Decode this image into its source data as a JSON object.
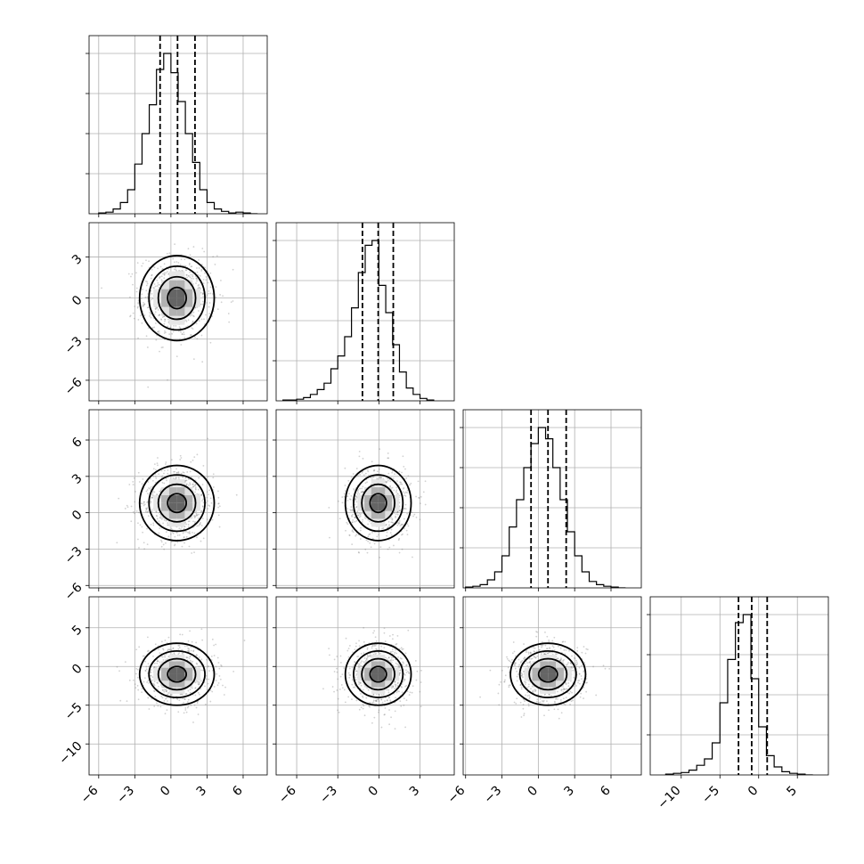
{
  "chart_data": {
    "type": "corner",
    "n_params": 4,
    "grid": true,
    "colors": {
      "frame": "#000000",
      "grid": "#b0b0b0",
      "points": "#7a7a7a",
      "density_max": "#000000"
    },
    "params": [
      {
        "index": 0,
        "range": [
          -6.8,
          8.0
        ],
        "ticks": [
          -6,
          -3,
          0,
          3,
          6
        ],
        "tick_labels": [
          "−6",
          "−3",
          "0",
          "3",
          "6"
        ],
        "quantiles": [
          -0.9,
          0.55,
          2.0
        ],
        "hist": {
          "edges": [
            -6,
            -5.4,
            -4.8,
            -4.2,
            -3.6,
            -3.0,
            -2.4,
            -1.8,
            -1.2,
            -0.6,
            0.0,
            0.6,
            1.2,
            1.8,
            2.4,
            3.0,
            3.6,
            4.2,
            4.8,
            5.4,
            6.0,
            6.6,
            7.2
          ],
          "counts": [
            0.005,
            0.01,
            0.03,
            0.07,
            0.15,
            0.31,
            0.5,
            0.68,
            0.9,
            1.0,
            0.88,
            0.7,
            0.5,
            0.32,
            0.15,
            0.07,
            0.03,
            0.015,
            0.005,
            0.01,
            0.005,
            0.0
          ]
        }
      },
      {
        "index": 1,
        "range": [
          -7.5,
          5.5
        ],
        "ticks": [
          -6,
          -3,
          0,
          3
        ],
        "tick_labels": [
          "−6",
          "−3",
          "0",
          "3"
        ],
        "quantiles": [
          -1.2,
          -0.05,
          1.05
        ],
        "hist": {
          "edges": [
            -7.0,
            -6.5,
            -6.0,
            -5.5,
            -5.0,
            -4.5,
            -4.0,
            -3.5,
            -3.0,
            -2.5,
            -2.0,
            -1.5,
            -1.0,
            -0.5,
            0.0,
            0.5,
            1.0,
            1.5,
            2.0,
            2.5,
            3.0,
            3.5,
            4.0
          ],
          "counts": [
            0.005,
            0.005,
            0.01,
            0.02,
            0.04,
            0.07,
            0.11,
            0.2,
            0.28,
            0.4,
            0.58,
            0.8,
            0.97,
            1.0,
            0.72,
            0.55,
            0.35,
            0.18,
            0.08,
            0.04,
            0.015,
            0.005
          ]
        }
      },
      {
        "index": 2,
        "range": [
          -6.2,
          8.5
        ],
        "ticks": [
          -6,
          -3,
          0,
          3,
          6
        ],
        "tick_labels": [
          "−6",
          "−3",
          "0",
          "3",
          "6"
        ],
        "quantiles": [
          -0.6,
          0.8,
          2.3
        ],
        "hist": {
          "edges": [
            -6,
            -5.4,
            -4.8,
            -4.2,
            -3.6,
            -3.0,
            -2.4,
            -1.8,
            -1.2,
            -0.6,
            0.0,
            0.6,
            1.2,
            1.8,
            2.4,
            3.0,
            3.6,
            4.2,
            4.8,
            5.4,
            6.0,
            6.6,
            7.2
          ],
          "counts": [
            0.005,
            0.01,
            0.02,
            0.05,
            0.1,
            0.2,
            0.38,
            0.55,
            0.75,
            0.9,
            1.0,
            0.93,
            0.75,
            0.55,
            0.35,
            0.2,
            0.1,
            0.04,
            0.02,
            0.01,
            0.005,
            0.0
          ]
        }
      },
      {
        "index": 3,
        "range": [
          -14.0,
          9.0
        ],
        "ticks": [
          -10,
          -5,
          0,
          5
        ],
        "tick_labels": [
          "−10",
          "−5",
          "0",
          "5"
        ],
        "quantiles": [
          -2.6,
          -0.9,
          1.1
        ],
        "hist": {
          "edges": [
            -12.0,
            -11.0,
            -10.0,
            -9.0,
            -8.0,
            -7.0,
            -6.0,
            -5.0,
            -4.0,
            -3.0,
            -2.0,
            -1.0,
            0.0,
            1.0,
            2.0,
            3.0,
            4.0,
            5.0,
            6.0,
            7.0
          ],
          "counts": [
            0.005,
            0.01,
            0.015,
            0.03,
            0.06,
            0.1,
            0.2,
            0.45,
            0.72,
            0.95,
            1.0,
            0.6,
            0.3,
            0.12,
            0.05,
            0.02,
            0.01,
            0.005,
            0.0
          ]
        }
      }
    ],
    "pairs": [
      {
        "row": 1,
        "col": 0,
        "center": [
          0.5,
          0.0
        ],
        "sigma": [
          1.55,
          1.55
        ]
      },
      {
        "row": 2,
        "col": 0,
        "center": [
          0.5,
          0.8
        ],
        "sigma": [
          1.55,
          1.55
        ]
      },
      {
        "row": 2,
        "col": 1,
        "center": [
          -0.05,
          0.8
        ],
        "sigma": [
          1.2,
          1.55
        ]
      },
      {
        "row": 3,
        "col": 0,
        "center": [
          0.5,
          -1.0
        ],
        "sigma": [
          1.55,
          2.0
        ]
      },
      {
        "row": 3,
        "col": 1,
        "center": [
          -0.05,
          -1.0
        ],
        "sigma": [
          1.2,
          2.0
        ]
      },
      {
        "row": 3,
        "col": 2,
        "center": [
          0.8,
          -1.0
        ],
        "sigma": [
          1.55,
          2.0
        ]
      }
    ],
    "contour_levels": [
      0.5,
      1.0,
      1.5,
      2.0
    ]
  }
}
